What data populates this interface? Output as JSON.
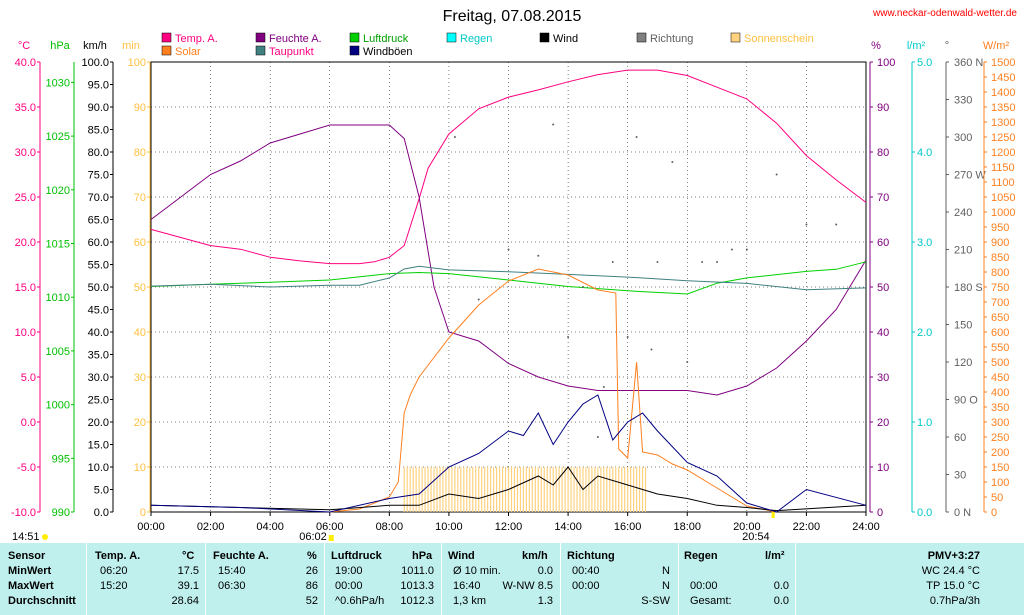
{
  "title": "Freitag, 07.08.2015",
  "site": "www.neckar-odenwald-wetter.de",
  "legend": [
    {
      "label": "Temp. A.",
      "color": "#ff0080",
      "text_color": "#ff0080"
    },
    {
      "label": "Feuchte A.",
      "color": "#800080",
      "text_color": "#800080"
    },
    {
      "label": "Luftdruck",
      "color": "#00d000",
      "text_color": "#00a000"
    },
    {
      "label": "Regen",
      "color": "#00ffff",
      "text_color": "#00c8c8"
    },
    {
      "label": "Wind",
      "color": "#000000",
      "text_color": "#000000"
    },
    {
      "label": "Richtung",
      "color": "#808080",
      "text_color": "#606060"
    },
    {
      "label": "Sonnenschein",
      "color": "#ffd27f",
      "text_color": "#ffc040"
    },
    {
      "label": "Solar",
      "color": "#ff8020",
      "text_color": "#ff8020"
    },
    {
      "label": "Taupunkt",
      "color": "#408080",
      "text_color": "#ff0080"
    },
    {
      "label": "Windböen",
      "color": "#000080",
      "text_color": "#000000"
    }
  ],
  "axes": {
    "left": [
      {
        "unit": "°C",
        "color": "#ff0080",
        "ticks": [
          "40.0",
          "35.0",
          "30.0",
          "25.0",
          "20.0",
          "15.0",
          "10.0",
          "5.0",
          "0.0",
          "-5.0",
          "-10.0"
        ]
      },
      {
        "unit": "hPa",
        "color": "#00c000",
        "ticks": [
          "1030",
          "1025",
          "1020",
          "1015",
          "1010",
          "1005",
          "1000",
          "995",
          "990"
        ]
      },
      {
        "unit": "km/h",
        "color": "#000000",
        "ticks": [
          "100.0",
          "95.0",
          "90.0",
          "85.0",
          "80.0",
          "75.0",
          "70.0",
          "65.0",
          "60.0",
          "55.0",
          "50.0",
          "45.0",
          "40.0",
          "35.0",
          "30.0",
          "25.0",
          "20.0",
          "15.0",
          "10.0",
          "5.0",
          "0.0"
        ]
      },
      {
        "unit": "min",
        "color": "#ffc040",
        "ticks": [
          "100",
          "90",
          "80",
          "70",
          "60",
          "50",
          "40",
          "30",
          "20",
          "10",
          "0"
        ]
      }
    ],
    "right": [
      {
        "unit": "%",
        "color": "#800080",
        "ticks": [
          "100",
          "90",
          "80",
          "70",
          "60",
          "50",
          "40",
          "30",
          "20",
          "10",
          "0"
        ]
      },
      {
        "unit": "l/m²",
        "color": "#00c8c8",
        "ticks": [
          "5.0",
          "4.0",
          "3.0",
          "2.0",
          "1.0",
          "0.0"
        ]
      },
      {
        "unit": "°",
        "color": "#606060",
        "ticks": [
          "360 N",
          "330",
          "300",
          "270 W",
          "240",
          "210",
          "180 S",
          "150",
          "120",
          "90 O",
          "60",
          "30",
          "0 N"
        ]
      },
      {
        "unit": "W/m²",
        "color": "#ff8020",
        "ticks": [
          "1500",
          "1450",
          "1400",
          "1350",
          "1300",
          "1250",
          "1200",
          "1150",
          "1100",
          "1050",
          "1000",
          "950",
          "900",
          "850",
          "800",
          "750",
          "700",
          "650",
          "600",
          "550",
          "500",
          "450",
          "400",
          "350",
          "300",
          "250",
          "200",
          "150",
          "100",
          "50",
          "0"
        ]
      }
    ],
    "x_ticks": [
      "00:00",
      "02:00",
      "04:00",
      "06:00",
      "08:00",
      "10:00",
      "12:00",
      "14:00",
      "16:00",
      "18:00",
      "20:00",
      "22:00",
      "24:00"
    ],
    "sunrise": "06:02",
    "sunset": "20:54",
    "sun_hours": "14:51"
  },
  "chart_data": {
    "type": "line",
    "x_unit": "hour",
    "series": [
      {
        "name": "Temp. A.",
        "unit": "°C",
        "color": "#ff0080",
        "x": [
          0,
          1,
          2,
          3,
          4,
          5,
          6,
          7,
          7.5,
          8,
          8.5,
          9,
          9.3,
          10,
          11,
          12,
          13,
          14,
          15,
          16,
          17,
          18,
          19,
          20,
          21,
          22,
          23,
          24
        ],
        "values": [
          21.4,
          20.5,
          19.6,
          19.2,
          18.3,
          17.9,
          17.6,
          17.6,
          17.8,
          18.3,
          19.6,
          24.8,
          28.2,
          32,
          34.8,
          36.1,
          36.9,
          37.8,
          38.6,
          39.1,
          39.1,
          38.5,
          37.2,
          35.9,
          33.2,
          29.6,
          26.9,
          24.4
        ]
      },
      {
        "name": "Feuchte A.",
        "unit": "%",
        "color": "#800080",
        "x": [
          0,
          1,
          2,
          3,
          4,
          5,
          6,
          7,
          8,
          8.5,
          9,
          9.5,
          10,
          11,
          12,
          13,
          14,
          15,
          16,
          17,
          18,
          19,
          20,
          21,
          22,
          23,
          24
        ],
        "values": [
          65,
          70,
          75,
          78,
          82,
          84,
          86,
          86,
          86,
          83,
          70,
          50,
          40,
          38,
          33,
          30,
          28,
          27,
          27,
          27,
          27,
          26,
          28,
          32,
          38,
          45,
          56
        ]
      },
      {
        "name": "Luftdruck",
        "unit": "hPa",
        "color": "#00d000",
        "x": [
          0,
          2,
          4,
          6,
          8,
          9,
          10,
          12,
          14,
          16,
          18,
          19,
          20,
          22,
          23,
          24
        ],
        "values": [
          1011.0,
          1011.2,
          1011.4,
          1011.6,
          1012.2,
          1012.3,
          1012.2,
          1011.6,
          1011.0,
          1010.6,
          1010.3,
          1011.3,
          1011.8,
          1012.4,
          1012.6,
          1013.3
        ]
      },
      {
        "name": "Taupunkt",
        "unit": "°C",
        "color": "#408080",
        "x": [
          0,
          2,
          4,
          6,
          7,
          8,
          8.5,
          9,
          10,
          12,
          14,
          16,
          18,
          20,
          22,
          24
        ],
        "values": [
          15.1,
          15.3,
          15.0,
          15.2,
          15.2,
          16.0,
          17.0,
          17.3,
          16.9,
          16.7,
          16.4,
          16.1,
          15.7,
          15.4,
          14.7,
          14.9
        ]
      },
      {
        "name": "Solar",
        "unit": "W/m²",
        "color": "#ff8020",
        "x": [
          6,
          7,
          8,
          8.3,
          8.5,
          8.7,
          9,
          10,
          11,
          12,
          13,
          13.5,
          14,
          15,
          15.6,
          15.7,
          16,
          16.3,
          16.5,
          17,
          17.5,
          18,
          19,
          20,
          21
        ],
        "values": [
          0,
          10,
          50,
          100,
          330,
          390,
          450,
          580,
          690,
          770,
          810,
          800,
          790,
          740,
          730,
          210,
          180,
          500,
          200,
          190,
          160,
          140,
          80,
          20,
          0
        ]
      },
      {
        "name": "Wind",
        "unit": "km/h",
        "color": "#000000",
        "x": [
          0,
          3,
          6,
          8,
          9,
          10,
          11,
          12,
          13,
          13.5,
          14,
          14.5,
          15,
          16,
          17,
          18,
          19,
          20,
          21,
          24
        ],
        "values": [
          1.5,
          1,
          0.5,
          1.5,
          1.5,
          4,
          3,
          5,
          8,
          6,
          10,
          5,
          8,
          6,
          4,
          3,
          1.5,
          1,
          0.3,
          1.5
        ]
      },
      {
        "name": "Windböen",
        "unit": "km/h",
        "color": "#000080",
        "x": [
          0,
          3,
          6,
          8,
          9,
          10,
          11,
          12,
          12.5,
          13,
          13.5,
          14,
          14.5,
          15,
          15.5,
          16,
          16.5,
          17,
          18,
          19,
          20,
          21,
          22,
          24
        ],
        "values": [
          1.5,
          1,
          0,
          3,
          4,
          10,
          13,
          18,
          17,
          22,
          15,
          20,
          24,
          26,
          16,
          20,
          22,
          18,
          11,
          8,
          2,
          0,
          5,
          1.5
        ]
      }
    ],
    "sunshine_min": {
      "unit": "min",
      "color": "#ffd27f",
      "x_range": [
        8.5,
        16.6
      ],
      "value": 10
    },
    "wind_direction": {
      "unit": "°",
      "x": [
        10.2,
        11,
        12,
        13,
        13.5,
        14,
        14.5,
        15,
        15.2,
        15.5,
        16,
        16.3,
        16.8,
        17,
        17.5,
        18,
        18.5,
        19,
        19.5,
        20,
        21,
        22,
        23,
        24
      ],
      "values": [
        300,
        170,
        210,
        205,
        310,
        140,
        180,
        60,
        100,
        200,
        140,
        300,
        130,
        200,
        280,
        120,
        200,
        200,
        210,
        210,
        270,
        230,
        230,
        300
      ]
    }
  },
  "table": {
    "headers": {
      "sensor": "Sensor",
      "temp": "Temp. A.",
      "temp_unit": "°C",
      "hum": "Feuchte A.",
      "hum_unit": "%",
      "press": "Luftdruck",
      "press_unit": "hPa",
      "wind": "Wind",
      "wind_unit": "km/h",
      "dir": "Richtung",
      "rain": "Regen",
      "rain_unit": "l/m²",
      "pmv": "PMV+3:27"
    },
    "rows": [
      {
        "label": "MinWert",
        "temp_time": "06:20",
        "temp": "17.5",
        "hum_time": "15:40",
        "hum": "26",
        "press_time": "19:00",
        "press": "1011.0",
        "wind_time": "Ø 10 min.",
        "wind": "0.0",
        "dir_time": "00:40",
        "dir": "N",
        "rain_time": "",
        "rain": "",
        "extra": "WC 24.4 °C"
      },
      {
        "label": "MaxWert",
        "temp_time": "15:20",
        "temp": "39.1",
        "hum_time": "06:30",
        "hum": "86",
        "press_time": "00:00",
        "press": "1013.3",
        "wind_time": "16:40",
        "wind": "W-NW 8.5",
        "dir_time": "00:00",
        "dir": "N",
        "rain_time": "00:00",
        "rain": "0.0",
        "extra": "TP 15.0 °C"
      },
      {
        "label": "Durchschnitt",
        "temp_time": "",
        "temp": "28.64",
        "hum_time": "",
        "hum": "52",
        "press_time": "^0.6hPa/h",
        "press": "1012.3",
        "wind_time": "1,3 km",
        "wind": "1.3",
        "dir_time": "",
        "dir": "S-SW",
        "rain_time": "Gesamt:",
        "rain": "0.0",
        "extra": "0.7hPa/3h"
      }
    ]
  }
}
